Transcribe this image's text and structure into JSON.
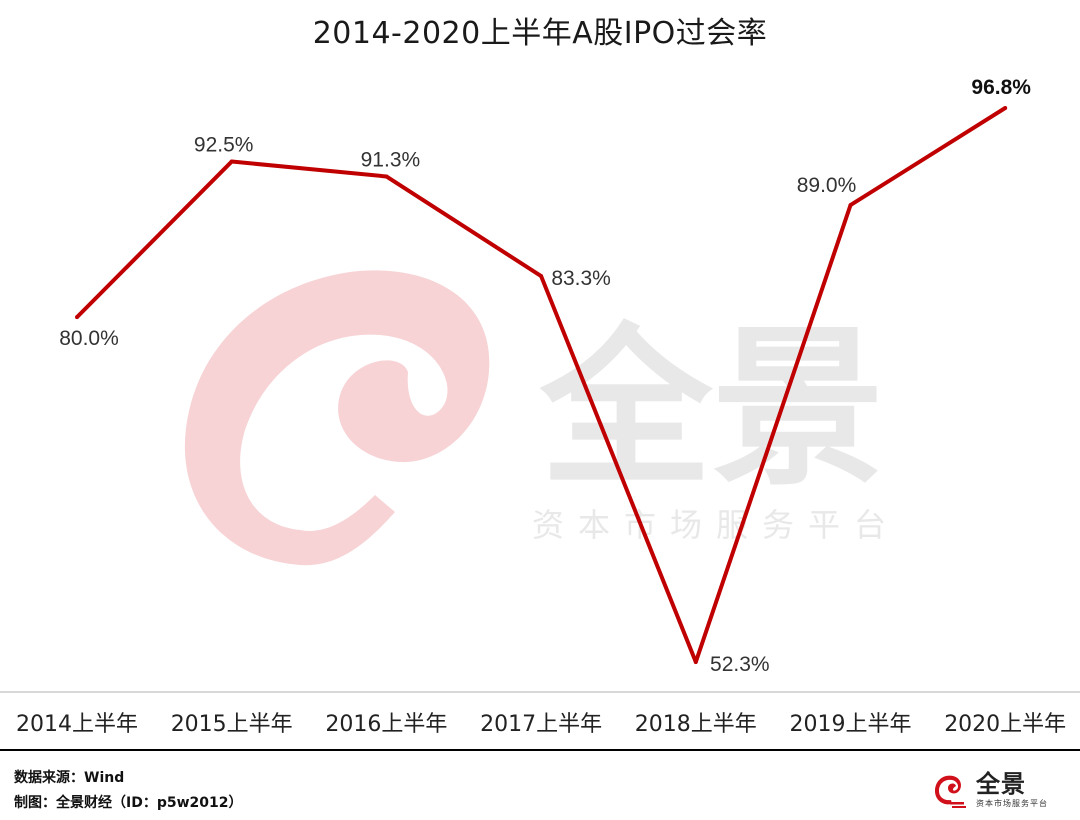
{
  "chart_data": {
    "type": "line",
    "title": "2014-2020上半年A股IPO过会率",
    "categories": [
      "2014上半年",
      "2015上半年",
      "2016上半年",
      "2017上半年",
      "2018上半年",
      "2019上半年",
      "2020上半年"
    ],
    "series": [
      {
        "values": [
          80.0,
          92.5,
          91.3,
          83.3,
          52.3,
          89.0,
          96.8
        ],
        "labels": [
          "80.0%",
          "92.5%",
          "91.3%",
          "83.3%",
          "52.3%",
          "89.0%",
          "96.8%"
        ],
        "color": "#c00000"
      }
    ],
    "ylim": [
      45,
      100
    ],
    "grid": false,
    "legend": "none",
    "highlighted_label_index": 6
  },
  "watermark": {
    "brand": "全景",
    "slogan": "资本市场服务平台",
    "colors": {
      "logo": "#f7d3d5",
      "text": "#e6e6e6"
    }
  },
  "footer": {
    "source": "数据来源：Wind",
    "credit": "制图：全景财经（ID：p5w2012）"
  },
  "brand_logo": {
    "name": "全景",
    "slogan": "资本市场服务平台",
    "color": "#d0101b"
  },
  "colors": {
    "line": "#c00000",
    "axis_line": "#cccccc",
    "bottom_rule": "#000000"
  }
}
